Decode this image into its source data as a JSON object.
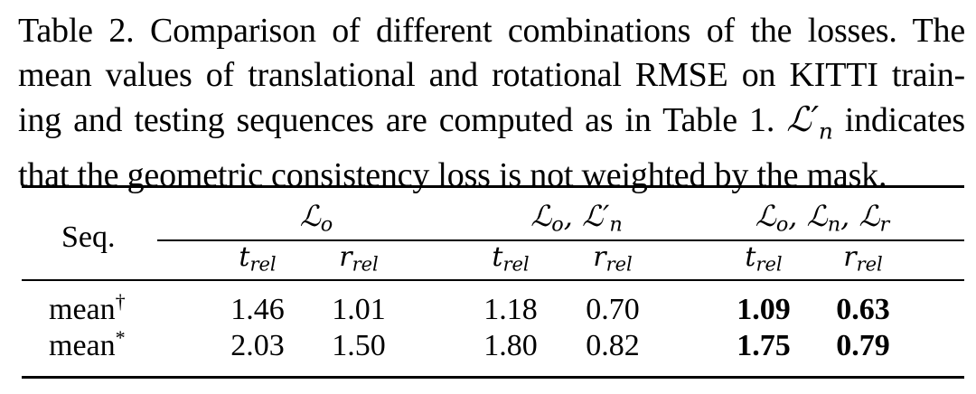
{
  "caption": {
    "line1": "Table 2. Comparison of different combinations of the losses. The",
    "line2": "mean values of translational and rotational RMSE on KITTI train-",
    "line3_a": "ing and testing sequences are computed as in Table 1.",
    "line3_math": "ℒ′",
    "line3_math_sub": "n",
    "line3_b": "indicates",
    "line4": "that the geometric consistency loss is not weighted by the mask."
  },
  "table": {
    "row_header": "Seq.",
    "groups": [
      {
        "label": "ℒ",
        "sub": "o",
        "extra": ""
      },
      {
        "label": "ℒ",
        "sub": "o",
        "extra": ", ℒ′",
        "extra_sub": "n"
      },
      {
        "label": "ℒ",
        "sub": "o",
        "extra": ", ℒ",
        "extra_sub": "n",
        "extra2": ", ℒ",
        "extra2_sub": "r"
      }
    ],
    "subheaders": {
      "t": "t",
      "t_sub": "rel",
      "r": "r",
      "r_sub": "rel"
    },
    "rows": [
      {
        "label": "mean",
        "marker": "†",
        "values": [
          "1.46",
          "1.01",
          "1.18",
          "0.70",
          "1.09",
          "0.63"
        ]
      },
      {
        "label": "mean",
        "marker": "*",
        "values": [
          "2.03",
          "1.50",
          "1.80",
          "0.82",
          "1.75",
          "0.79"
        ]
      }
    ]
  }
}
